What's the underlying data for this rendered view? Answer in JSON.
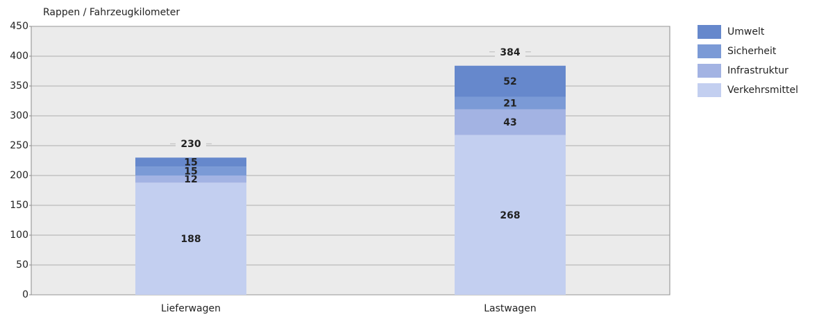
{
  "chart_data": {
    "type": "stacked_bar",
    "y_label": "Rappen / Fahrzeugkilometer",
    "categories": [
      "Lieferwagen",
      "Lastwagen"
    ],
    "series": [
      {
        "name": "Verkehrsmittel",
        "color": "#c3cff0",
        "label_color": "#000000",
        "values": [
          188,
          268
        ]
      },
      {
        "name": "Infrastruktur",
        "color": "#a3b3e3",
        "label_color": "#000000",
        "values": [
          12,
          43
        ]
      },
      {
        "name": "Sicherheit",
        "color": "#7b9ad6",
        "label_color": "#ffffff",
        "values": [
          15,
          21
        ]
      },
      {
        "name": "Umwelt",
        "color": "#6688cc",
        "label_color": "#ffffff",
        "values": [
          15,
          52
        ]
      }
    ],
    "totals": [
      230,
      384
    ],
    "ylim": [
      0,
      450
    ],
    "yticks": [
      0,
      50,
      100,
      150,
      200,
      250,
      300,
      350,
      400,
      450
    ],
    "grid": true,
    "legend": "right"
  }
}
